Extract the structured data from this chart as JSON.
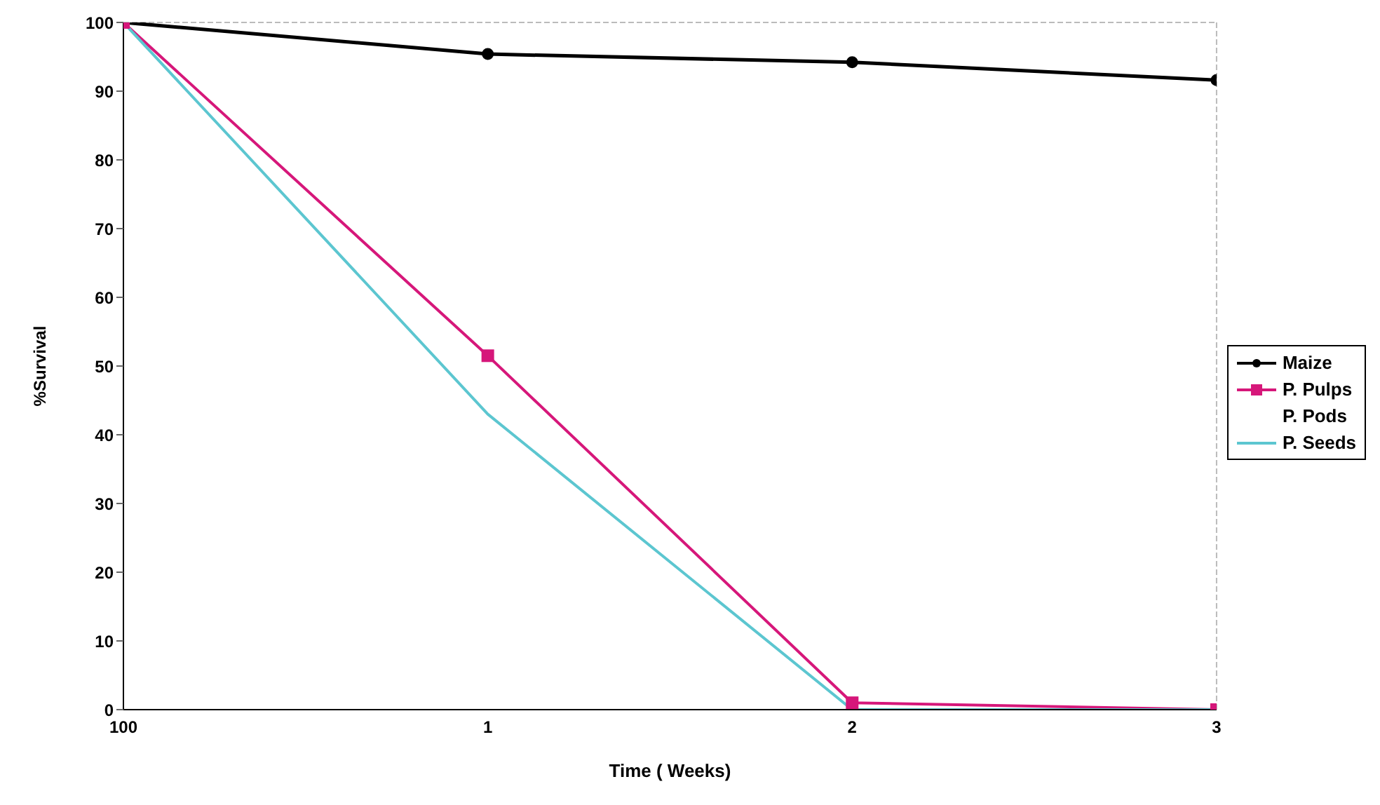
{
  "chart_data": {
    "type": "line",
    "xlabel": "Time ( Weeks)",
    "ylabel": "%Survival",
    "categories": [
      "100",
      "1",
      "2",
      "3"
    ],
    "series": [
      {
        "name": "Maize",
        "color": "#000000",
        "marker": "circle",
        "values": [
          100,
          95.4,
          94.2,
          91.6
        ]
      },
      {
        "name": "P. Pulps",
        "color": "#d6177a",
        "marker": "square",
        "values": [
          100,
          51.5,
          1,
          0
        ]
      },
      {
        "name": "P. Pods",
        "marker": "none",
        "values": [
          null,
          null,
          null,
          null
        ]
      },
      {
        "name": "P. Seeds",
        "color": "#5cc6d0",
        "marker": "none",
        "values": [
          100,
          43,
          0,
          0
        ]
      }
    ],
    "ylim": [
      0,
      100
    ],
    "yticks": [
      0,
      10,
      20,
      30,
      40,
      50,
      60,
      70,
      80,
      90,
      100
    ],
    "grid": false,
    "legend": "right"
  }
}
